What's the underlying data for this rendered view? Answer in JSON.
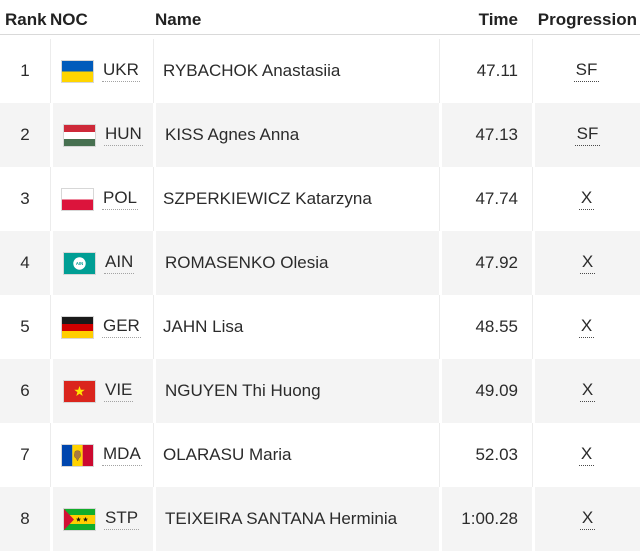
{
  "header": {
    "rank": "Rank",
    "noc": "NOC",
    "name": "Name",
    "time": "Time",
    "progression": "Progression"
  },
  "rows": [
    {
      "rank": "1",
      "noc": "UKR",
      "flag": "ukr-flag-icon",
      "name": "RYBACHOK Anastasiia",
      "time": "47.11",
      "progression": "SF"
    },
    {
      "rank": "2",
      "noc": "HUN",
      "flag": "hun-flag-icon",
      "name": "KISS Agnes Anna",
      "time": "47.13",
      "progression": "SF"
    },
    {
      "rank": "3",
      "noc": "POL",
      "flag": "pol-flag-icon",
      "name": "SZPERKIEWICZ Katarzyna",
      "time": "47.74",
      "progression": "X"
    },
    {
      "rank": "4",
      "noc": "AIN",
      "flag": "ain-flag-icon",
      "name": "ROMASENKO Olesia",
      "time": "47.92",
      "progression": "X"
    },
    {
      "rank": "5",
      "noc": "GER",
      "flag": "ger-flag-icon",
      "name": "JAHN Lisa",
      "time": "48.55",
      "progression": "X"
    },
    {
      "rank": "6",
      "noc": "VIE",
      "flag": "vie-flag-icon",
      "name": "NGUYEN Thi Huong",
      "time": "49.09",
      "progression": "X"
    },
    {
      "rank": "7",
      "noc": "MDA",
      "flag": "mda-flag-icon",
      "name": "OLARASU Maria",
      "time": "52.03",
      "progression": "X"
    },
    {
      "rank": "8",
      "noc": "STP",
      "flag": "stp-flag-icon",
      "name": "TEIXEIRA SANTANA Herminia",
      "time": "1:00.28",
      "progression": "X"
    }
  ],
  "colors": {
    "row_background": "#ffffff",
    "alt_row_background": "#f4f4f4",
    "text": "#2b2b2b",
    "header_rule": "#d9d9d9",
    "column_separator": "#ececec",
    "noc_underline": "#a3a3a3",
    "progression_underline": "#4a4a4a",
    "ain_teal": "#009e94"
  }
}
